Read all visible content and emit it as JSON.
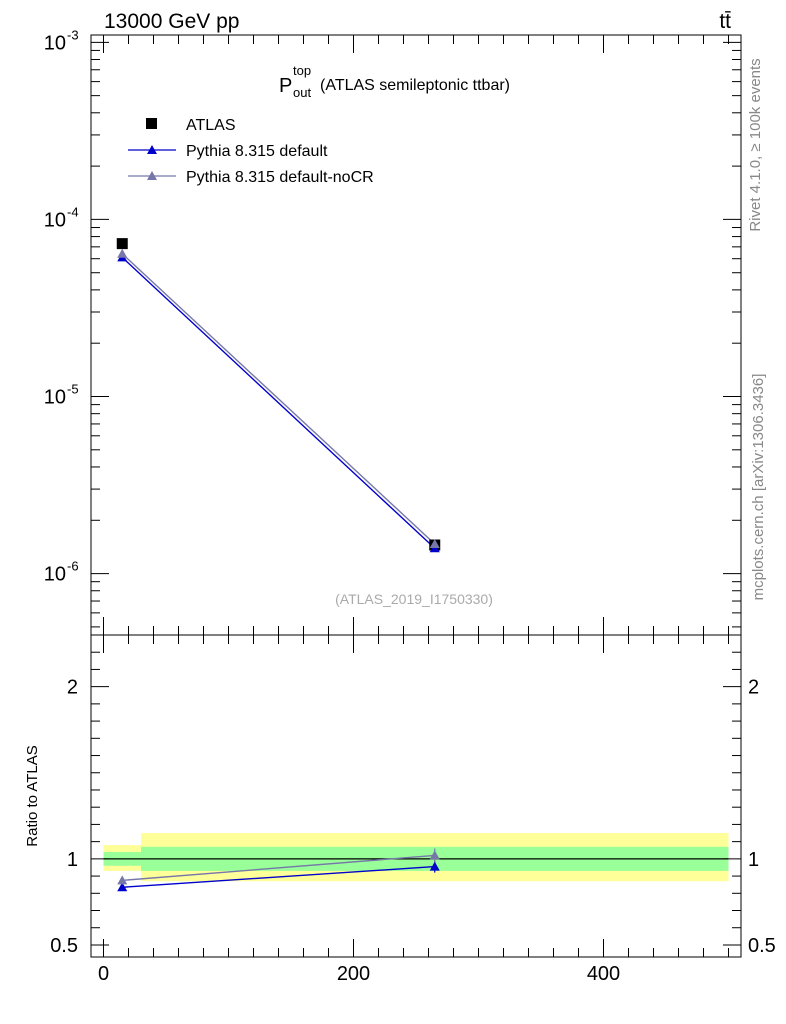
{
  "header": {
    "energy_label": "13000 GeV pp",
    "process_label": "tt̄"
  },
  "side_labels": {
    "rivet": "Rivet 4.1.0, ≥ 100k events",
    "mcplots": "mcplots.cern.ch [arXiv:1306.3436]"
  },
  "chart_data": [
    {
      "type": "scatter",
      "panel": "main",
      "title_main": "P",
      "title_sup": "top",
      "title_sub": "out",
      "title_rest": "(ATLAS semileptonic ttbar)",
      "analysis_tag": "(ATLAS_2019_I1750330)",
      "yscale": "log",
      "ylim": [
        4.5e-07,
        0.0011
      ],
      "xlim": [
        -10,
        510
      ],
      "y_tick_labels": [
        {
          "base": "10",
          "exp": "-3",
          "value": 0.001
        },
        {
          "base": "10",
          "exp": "-4",
          "value": 0.0001
        },
        {
          "base": "10",
          "exp": "-5",
          "value": 1e-05
        },
        {
          "base": "10",
          "exp": "-6",
          "value": 1e-06
        }
      ],
      "legend": {
        "placement": "top-left",
        "entries": [
          {
            "label": "ATLAS",
            "marker": "square",
            "color": "#000000"
          },
          {
            "label": "Pythia 8.315 default",
            "marker": "triangle",
            "color": "#0000cc"
          },
          {
            "label": "Pythia 8.315 default-noCR",
            "marker": "triangle",
            "color": "#7777aa"
          }
        ]
      },
      "series": [
        {
          "name": "ATLAS",
          "x": [
            15,
            265
          ],
          "y": [
            7.3e-05,
            1.45e-06
          ]
        },
        {
          "name": "Pythia 8.315 default",
          "x": [
            15,
            265
          ],
          "y": [
            6.1e-05,
            1.39e-06
          ]
        },
        {
          "name": "Pythia 8.315 default-noCR",
          "x": [
            15,
            265
          ],
          "y": [
            6.4e-05,
            1.47e-06
          ]
        }
      ]
    },
    {
      "type": "scatter",
      "panel": "ratio",
      "ylabel": "Ratio to ATLAS",
      "ylim": [
        0.43,
        2.3
      ],
      "xlim": [
        -10,
        510
      ],
      "x_tick_labels": [
        "0",
        "200",
        "400"
      ],
      "x_tick_values": [
        0,
        200,
        400
      ],
      "y_tick_labels": [
        "0.5",
        "1",
        "2"
      ],
      "y_tick_values": [
        0.5,
        1,
        2
      ],
      "uncertainty_bands": [
        {
          "x_range": [
            0,
            30
          ],
          "inner": [
            0.96,
            1.04
          ],
          "outer": [
            0.93,
            1.08
          ]
        },
        {
          "x_range": [
            30,
            500
          ],
          "inner": [
            0.93,
            1.07
          ],
          "outer": [
            0.87,
            1.15
          ]
        }
      ],
      "series": [
        {
          "name": "Pythia 8.315 default",
          "x": [
            15,
            265
          ],
          "y": [
            0.835,
            0.955
          ],
          "err": [
            0.015,
            0.035
          ]
        },
        {
          "name": "Pythia 8.315 default-noCR",
          "x": [
            15,
            265
          ],
          "y": [
            0.875,
            1.02
          ],
          "err": [
            0.02,
            0.04
          ]
        }
      ]
    }
  ]
}
